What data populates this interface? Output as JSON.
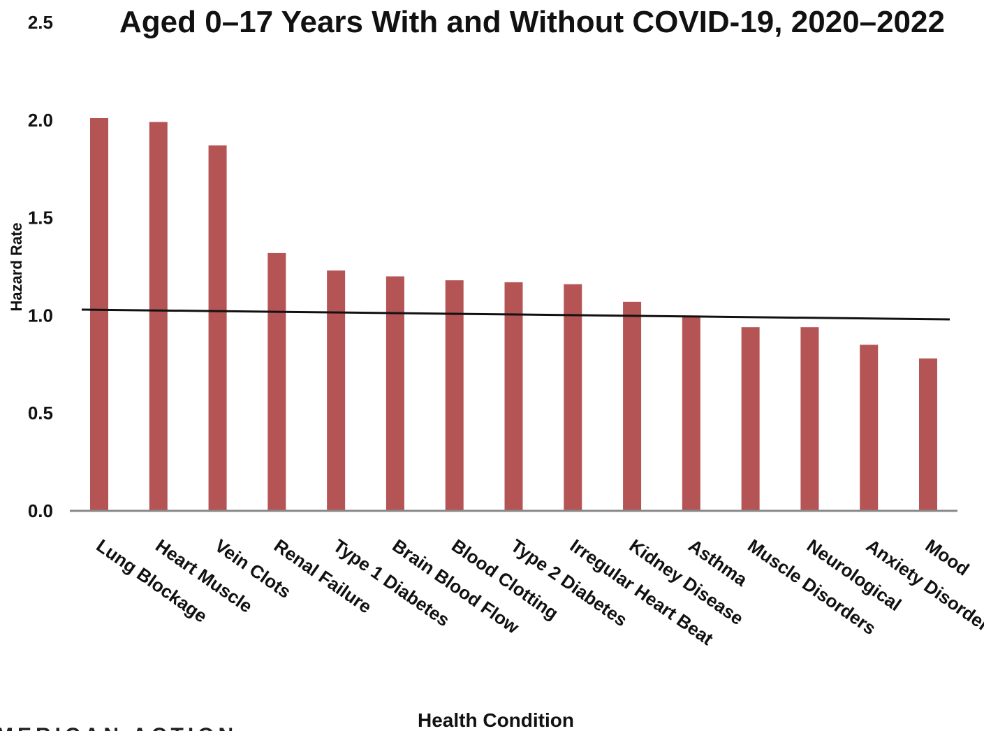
{
  "chart_data": {
    "type": "bar",
    "title": "Aged 0–17 Years With and Without COVID-19, 2020–2022",
    "xlabel": "Health Condition",
    "ylabel": "Hazard Rate",
    "ylim": [
      0,
      2.5
    ],
    "yticks": [
      "0.0",
      "0.5",
      "1.0",
      "1.5",
      "2.0",
      "2.5"
    ],
    "grid": false,
    "categories": [
      "Lung Blockage",
      "Heart Muscle",
      "Vein Clots",
      "Renal Failure",
      "Type 1 Diabetes",
      "Brain Blood Flow",
      "Blood Clotting",
      "Type 2 Diabetes",
      "Irregular Heart Beat",
      "Kidney Disease",
      "Asthma",
      "Muscle Disorders",
      "Neurological",
      "Anxiety Disorders",
      "Mood"
    ],
    "values": [
      2.01,
      1.99,
      1.87,
      1.32,
      1.23,
      1.2,
      1.18,
      1.17,
      1.16,
      1.07,
      1.0,
      0.94,
      0.94,
      0.85,
      0.78
    ],
    "trend_line": {
      "start": 1.03,
      "end": 0.98
    },
    "bar_color": "#b55454",
    "line_color": "#111111"
  },
  "footer": {
    "text": "MERICAN ACTION"
  }
}
